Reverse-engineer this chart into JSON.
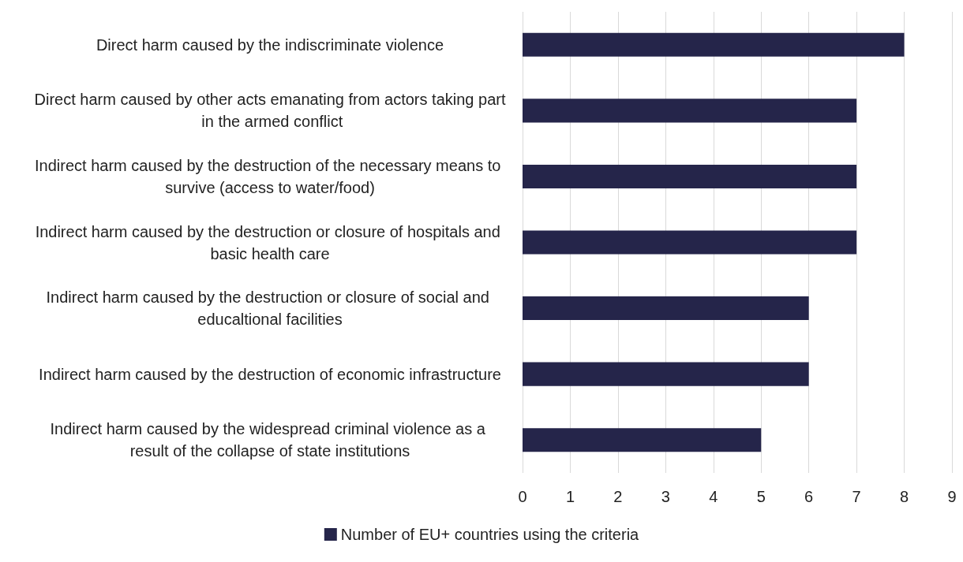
{
  "chart_data": {
    "type": "bar",
    "orientation": "horizontal",
    "categories": [
      "Direct harm caused by the indiscriminate violence",
      "Direct harm caused by other acts emanating from actors taking part in the armed conflict",
      "Indirect harm caused by the destruction of the necessary means to survive (access to water/food)",
      "Indirect harm caused by the destruction or closure of hospitals and basic health care",
      "Indirect harm caused by the destruction or closure of social and educaltional facilities",
      "Indirect harm caused by the destruction of economic infrastructure",
      "Indirect harm caused by the widespread criminal violence as a result of the collapse of state institutions"
    ],
    "series": [
      {
        "name": "Number of EU+ countries using the criteria",
        "color": "#25254a",
        "values": [
          8,
          7,
          7,
          7,
          6,
          6,
          5
        ]
      }
    ],
    "xlim": [
      0,
      9
    ],
    "xticks": [
      0,
      1,
      2,
      3,
      4,
      5,
      6,
      7,
      8,
      9
    ],
    "grid": "x",
    "legend": "bottom"
  }
}
